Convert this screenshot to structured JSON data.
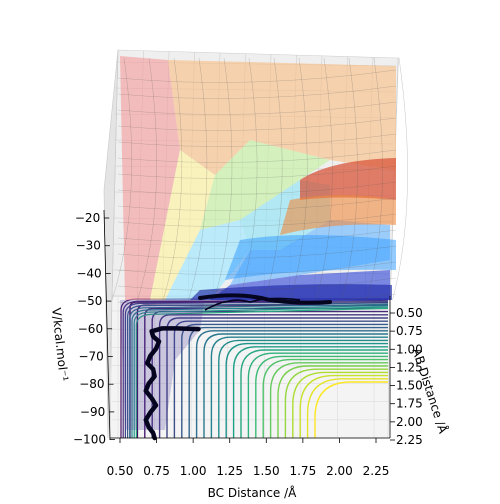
{
  "chart_data": {
    "type": "surface3d",
    "xlabel": "BC Distance /Å",
    "ylabel": "AB Distance /Å",
    "zlabel": "V/kcal.mol⁻¹",
    "x_ticks": [
      "0.50",
      "0.75",
      "1.00",
      "1.25",
      "1.50",
      "1.75",
      "2.00",
      "2.25"
    ],
    "y_ticks": [
      "0.50",
      "0.75",
      "1.00",
      "1.25",
      "1.50",
      "1.75",
      "2.00",
      "2.25"
    ],
    "z_ticks": [
      "−20",
      "−30",
      "−40",
      "−50",
      "−60",
      "−70",
      "−80",
      "−90",
      "−100"
    ],
    "xlim": [
      0.45,
      2.45
    ],
    "ylim": [
      0.5,
      2.25
    ],
    "zlim": [
      -100,
      -20
    ],
    "colormap": "viridis",
    "surface_colormap": "jet",
    "trajectory_color": "#050520",
    "trajectory": {
      "bc": [
        0.75,
        0.74,
        0.71,
        0.69,
        0.72,
        0.76,
        0.73,
        0.69,
        0.71,
        0.75,
        0.74,
        0.7,
        0.72,
        0.76,
        0.78,
        0.74,
        0.73,
        0.8,
        0.9,
        1.05
      ],
      "ab": [
        2.25,
        2.18,
        2.1,
        2.0,
        1.9,
        1.8,
        1.7,
        1.6,
        1.5,
        1.4,
        1.3,
        1.22,
        1.12,
        1.02,
        0.92,
        0.85,
        0.78,
        0.74,
        0.74,
        0.75
      ]
    }
  }
}
